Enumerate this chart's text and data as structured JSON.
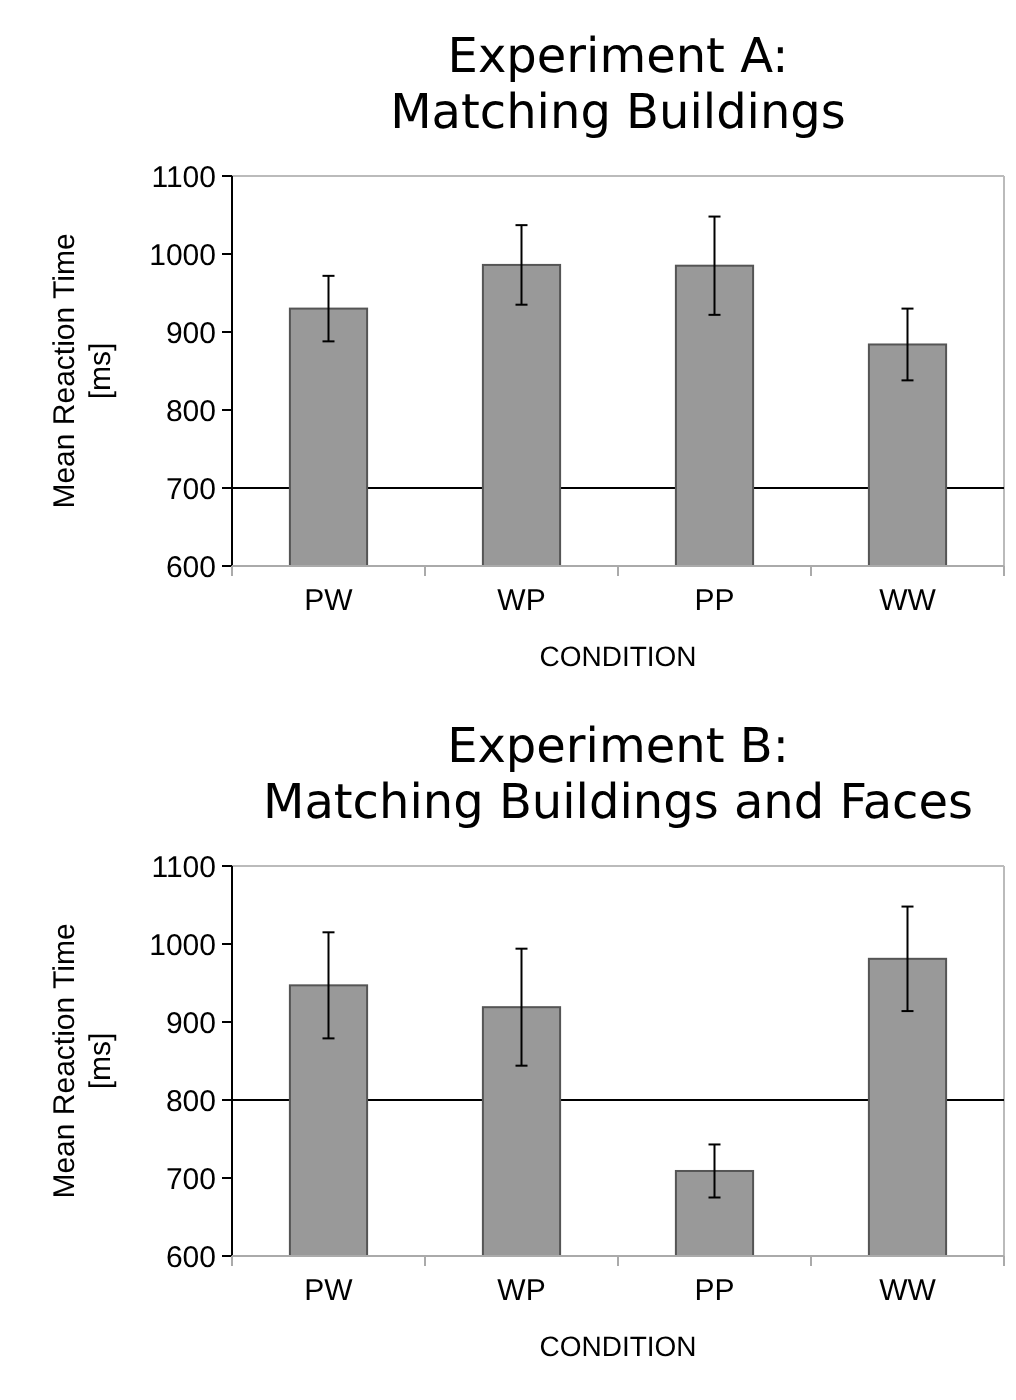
{
  "chart_data": [
    {
      "type": "bar",
      "title": "Experiment A:\nMatching Buildings",
      "xlabel": "CONDITION",
      "ylabel": "Mean Reaction Time\n[ms]",
      "categories": [
        "PW",
        "WP",
        "PP",
        "WW"
      ],
      "values": [
        930,
        986,
        985,
        884
      ],
      "errors": [
        42,
        51,
        63,
        46
      ],
      "color": "#999999",
      "ylim": [
        600,
        1100
      ],
      "yticks": [
        600,
        700,
        800,
        900,
        1000,
        1100
      ],
      "ref_lines": [
        {
          "axis": "y",
          "value": 700,
          "color": "#000000"
        }
      ]
    },
    {
      "type": "bar",
      "title": "Experiment B:\nMatching Buildings and Faces",
      "xlabel": "CONDITION",
      "ylabel": "Mean Reaction Time\n[ms]",
      "categories": [
        "PW",
        "WP",
        "PP",
        "WW"
      ],
      "values": [
        947,
        919,
        709,
        981
      ],
      "errors": [
        68,
        75,
        34,
        67
      ],
      "color": "#999999",
      "ylim": [
        600,
        1100
      ],
      "yticks": [
        600,
        700,
        800,
        900,
        1000,
        1100
      ],
      "ref_lines": [
        {
          "axis": "y",
          "value": 800,
          "color": "#000000"
        }
      ]
    }
  ]
}
